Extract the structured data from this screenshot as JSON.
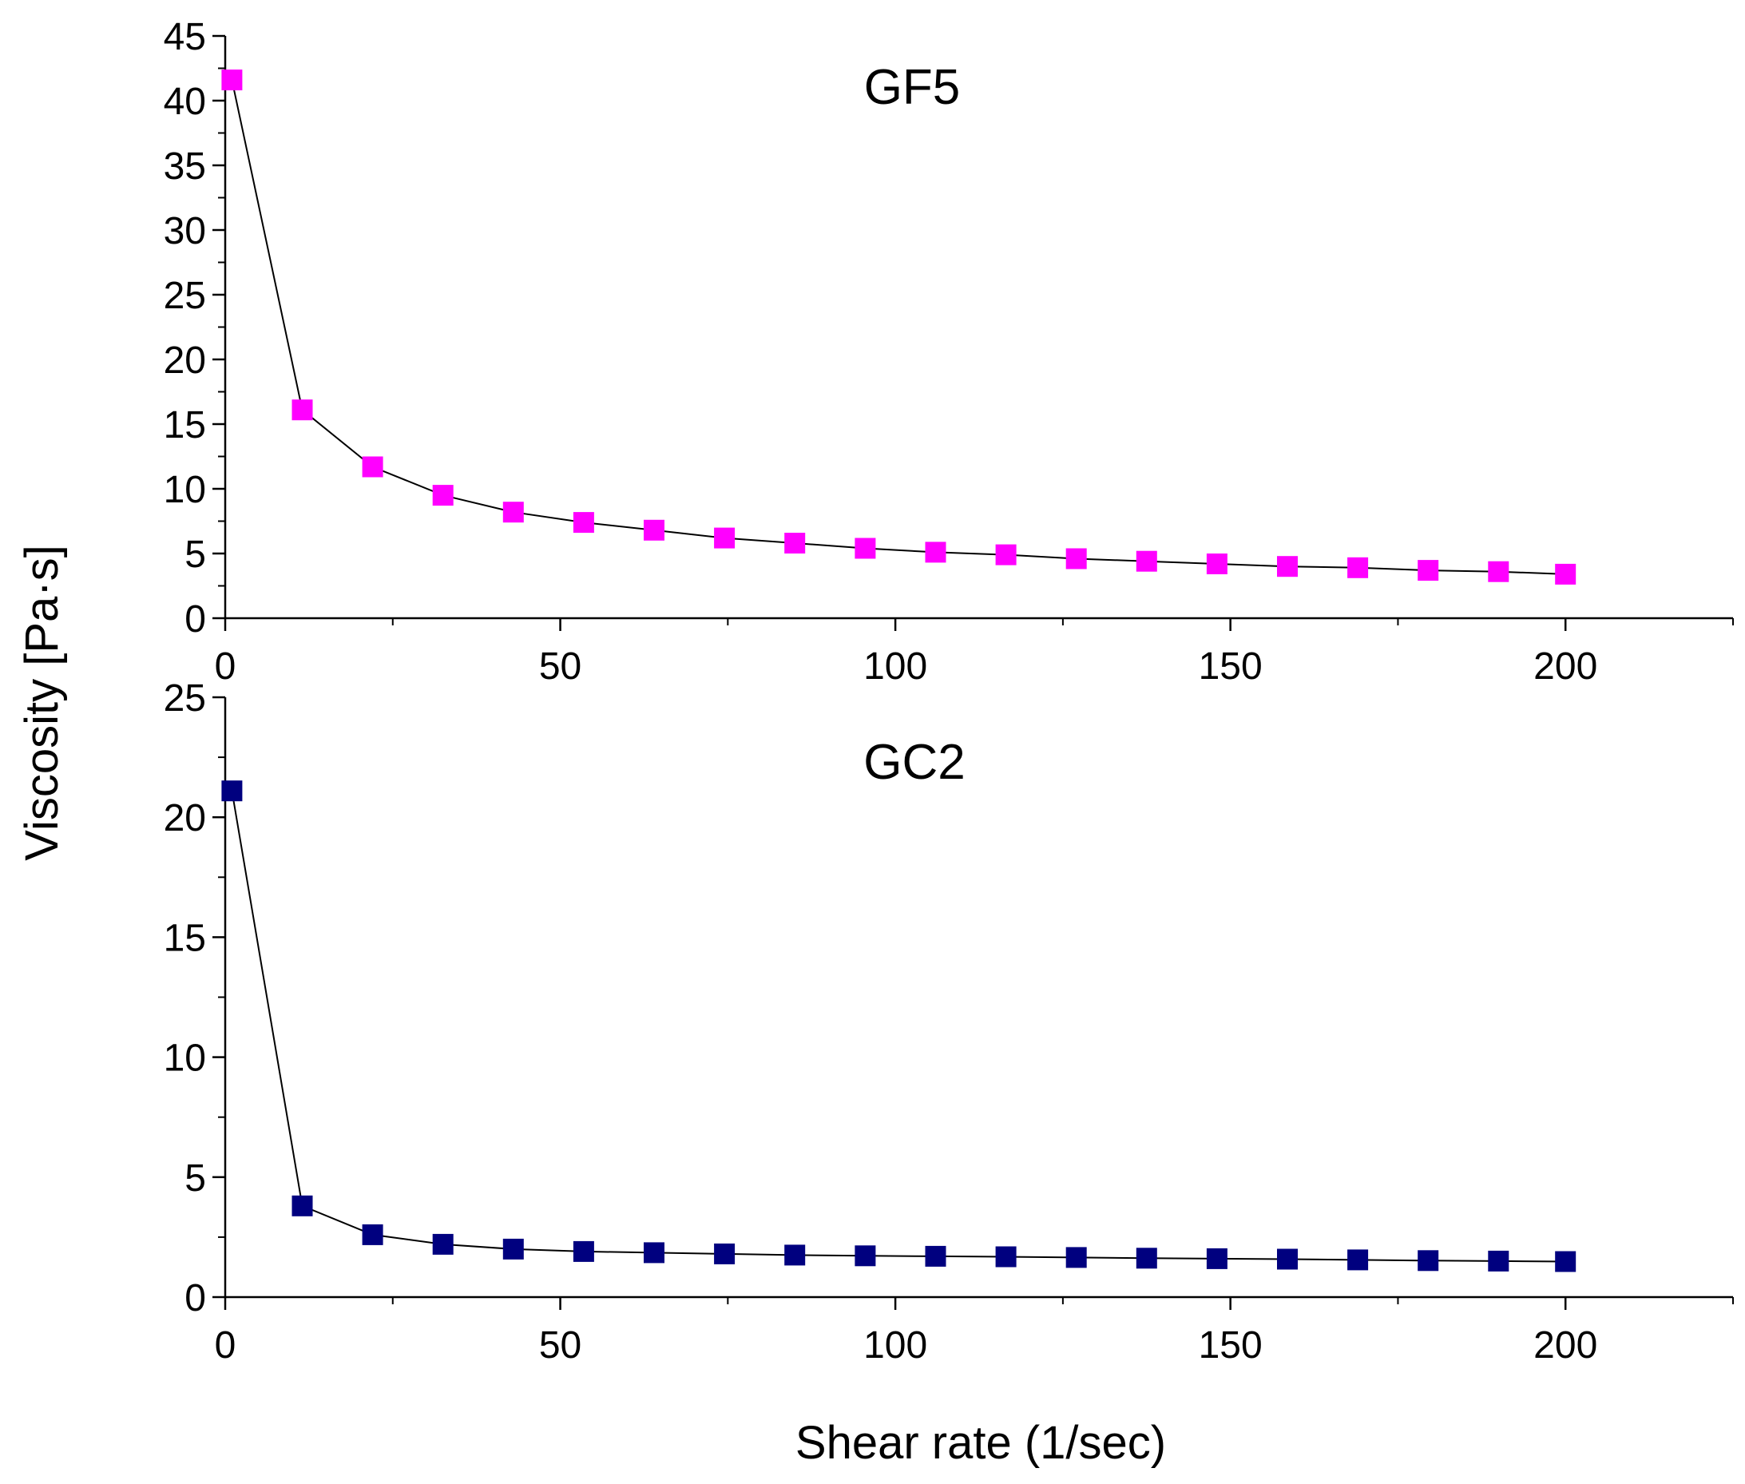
{
  "chart_data": [
    {
      "type": "line",
      "title": "GF5",
      "x": [
        1,
        11.5,
        22,
        32.5,
        43,
        53.5,
        64,
        74.5,
        85,
        95.5,
        106,
        116.5,
        127,
        137.5,
        148,
        158.5,
        169,
        179.5,
        190,
        200
      ],
      "series": [
        {
          "name": "GF5",
          "color": "#FF00FF",
          "values": [
            41.6,
            16.1,
            11.7,
            9.5,
            8.2,
            7.4,
            6.8,
            6.2,
            5.8,
            5.4,
            5.1,
            4.9,
            4.6,
            4.4,
            4.2,
            4.0,
            3.9,
            3.7,
            3.6,
            3.4
          ]
        }
      ],
      "xlim": [
        0,
        225
      ],
      "ylim": [
        0,
        45
      ],
      "xticks": [
        0,
        50,
        100,
        150,
        200
      ],
      "yticks": [
        0,
        5,
        10,
        15,
        20,
        25,
        30,
        35,
        40,
        45
      ],
      "xtick_labels": [
        "0",
        "50",
        "100",
        "150",
        "200"
      ],
      "ytick_labels": [
        "0",
        "5",
        "10",
        "15",
        "20",
        "25",
        "30",
        "35",
        "40",
        "45"
      ],
      "grid": false
    },
    {
      "type": "line",
      "title": "GC2",
      "x": [
        1,
        11.5,
        22,
        32.5,
        43,
        53.5,
        64,
        74.5,
        85,
        95.5,
        106,
        116.5,
        127,
        137.5,
        148,
        158.5,
        169,
        179.5,
        190,
        200
      ],
      "series": [
        {
          "name": "GC2",
          "color": "#00007F",
          "values": [
            21.1,
            3.8,
            2.6,
            2.2,
            2.0,
            1.9,
            1.85,
            1.8,
            1.75,
            1.72,
            1.7,
            1.68,
            1.65,
            1.62,
            1.6,
            1.58,
            1.55,
            1.52,
            1.5,
            1.48
          ]
        }
      ],
      "xlim": [
        0,
        225
      ],
      "ylim": [
        0,
        25
      ],
      "xticks": [
        0,
        50,
        100,
        150,
        200
      ],
      "yticks": [
        0,
        5,
        10,
        15,
        20,
        25
      ],
      "xtick_labels": [
        "0",
        "50",
        "100",
        "150",
        "200"
      ],
      "ytick_labels": [
        "0",
        "5",
        "10",
        "15",
        "20",
        "25"
      ],
      "grid": false
    }
  ],
  "labels": {
    "ylabel": "Viscosity [Pa·s]",
    "xlabel": "Shear rate (1/sec)"
  }
}
